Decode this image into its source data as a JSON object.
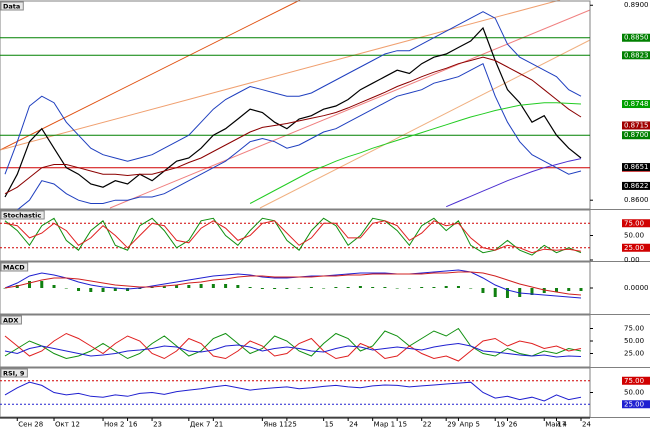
{
  "chart_data": [
    {
      "type": "line",
      "title": "Data",
      "categories": [
        null,
        "Сен 28",
        null,
        null,
        "Окт 12",
        null,
        null,
        null,
        "Ноя 2",
        null,
        "16",
        null,
        "23",
        null,
        null,
        "Дек 7",
        null,
        "21",
        null,
        null,
        null,
        "Янв 11",
        null,
        "25",
        null,
        null,
        "15",
        null,
        "24",
        null,
        "Мар 1",
        null,
        "15",
        null,
        "22",
        null,
        "29",
        "Апр 5",
        null,
        null,
        "19",
        "26",
        null,
        null,
        "Май 4",
        "17",
        null,
        "24"
      ],
      "ylim": [
        0.8588,
        0.8905
      ],
      "yticks": [
        {
          "value": 0.89,
          "label": "0.8900"
        },
        {
          "value": 0.86,
          "label": "0.8600"
        }
      ],
      "levels": [
        {
          "value": 0.885,
          "label": "0.8850",
          "color": "#008000"
        },
        {
          "value": 0.8823,
          "label": "0.8823",
          "color": "#008000"
        },
        {
          "value": 0.87,
          "label": "0.8700",
          "color": "#008000"
        },
        {
          "value": 0.865,
          "label": "0.8650",
          "color": "#d00000"
        }
      ],
      "markers": [
        {
          "value": 0.8748,
          "label": "0.8748",
          "color": "#00a000"
        },
        {
          "value": 0.8715,
          "label": "0.8715",
          "color": "#a00000"
        },
        {
          "value": 0.8651,
          "label": "0.8651",
          "color": "#000000"
        },
        {
          "value": 0.8622,
          "label": "0.8622",
          "color": "#000000"
        }
      ],
      "series": [
        {
          "color": "#000000",
          "values": [
            0.8605,
            0.864,
            0.869,
            0.871,
            0.868,
            0.865,
            0.864,
            0.8625,
            0.862,
            0.863,
            0.8625,
            0.864,
            0.863,
            0.8645,
            0.866,
            0.8665,
            0.868,
            0.87,
            0.871,
            0.8725,
            0.874,
            0.8735,
            0.872,
            0.871,
            0.8725,
            0.873,
            0.874,
            0.8745,
            0.8755,
            0.877,
            0.878,
            0.879,
            0.88,
            0.8795,
            0.881,
            0.882,
            0.8825,
            0.8835,
            0.8845,
            0.8865,
            0.8815,
            0.877,
            0.875,
            0.872,
            0.873,
            0.87,
            0.868,
            0.8665
          ]
        },
        {
          "color": "#1f3fbf",
          "values": [
            0.864,
            0.869,
            0.8745,
            0.876,
            0.875,
            0.872,
            0.87,
            0.868,
            0.867,
            0.8665,
            0.866,
            0.8665,
            0.867,
            0.868,
            0.869,
            0.87,
            0.872,
            0.874,
            0.8755,
            0.8765,
            0.8775,
            0.877,
            0.8765,
            0.876,
            0.876,
            0.8765,
            0.8775,
            0.8785,
            0.8795,
            0.8805,
            0.8815,
            0.8825,
            0.883,
            0.883,
            0.884,
            0.885,
            0.886,
            0.887,
            0.888,
            0.889,
            0.888,
            0.884,
            0.882,
            0.881,
            0.88,
            0.879,
            0.877,
            0.876
          ]
        },
        {
          "color": "#1f3fbf",
          "values": [
            0.858,
            0.8585,
            0.86,
            0.863,
            0.8625,
            0.861,
            0.86,
            0.8595,
            0.8595,
            0.86,
            0.86,
            0.8605,
            0.8605,
            0.861,
            0.862,
            0.863,
            0.864,
            0.865,
            0.866,
            0.8675,
            0.869,
            0.8695,
            0.869,
            0.868,
            0.8685,
            0.8695,
            0.8705,
            0.871,
            0.872,
            0.873,
            0.874,
            0.875,
            0.876,
            0.8765,
            0.877,
            0.878,
            0.8785,
            0.879,
            0.88,
            0.881,
            0.876,
            0.872,
            0.869,
            0.867,
            0.866,
            0.865,
            0.864,
            0.8645
          ]
        },
        {
          "color": "#8b0000",
          "values": [
            0.861,
            0.862,
            0.8635,
            0.865,
            0.8655,
            0.8655,
            0.865,
            0.8645,
            0.864,
            0.864,
            0.8638,
            0.864,
            0.864,
            0.8645,
            0.865,
            0.8658,
            0.8665,
            0.8675,
            0.8685,
            0.8695,
            0.8705,
            0.8712,
            0.8715,
            0.8718,
            0.8722,
            0.8726,
            0.873,
            0.8735,
            0.8742,
            0.875,
            0.8758,
            0.8766,
            0.8775,
            0.8782,
            0.879,
            0.8797,
            0.8803,
            0.881,
            0.8815,
            0.882,
            0.8815,
            0.8805,
            0.8795,
            0.8785,
            0.877,
            0.8755,
            0.874,
            0.8728
          ]
        },
        {
          "color": "#22cc22",
          "values": [
            null,
            null,
            null,
            null,
            null,
            null,
            null,
            null,
            null,
            null,
            null,
            null,
            null,
            null,
            null,
            null,
            null,
            null,
            null,
            null,
            0.8595,
            0.8605,
            0.8615,
            0.8625,
            0.8635,
            0.8645,
            0.8652,
            0.866,
            0.8667,
            0.8673,
            0.868,
            0.8686,
            0.8692,
            0.8698,
            0.8704,
            0.871,
            0.8716,
            0.8722,
            0.8728,
            0.8733,
            0.8738,
            0.8742,
            0.8746,
            0.8748,
            0.875,
            0.875,
            0.8749,
            0.8748
          ]
        },
        {
          "color": "#4b2fd0",
          "values": [
            null,
            null,
            null,
            null,
            null,
            null,
            null,
            null,
            null,
            null,
            null,
            null,
            null,
            null,
            null,
            null,
            null,
            null,
            null,
            null,
            null,
            null,
            null,
            null,
            null,
            null,
            null,
            null,
            null,
            null,
            null,
            null,
            null,
            null,
            null,
            null,
            0.859,
            0.8598,
            0.8606,
            0.8614,
            0.8622,
            0.863,
            0.8637,
            0.8644,
            0.865,
            0.8655,
            0.866,
            0.8664
          ]
        }
      ]
    },
    {
      "type": "line",
      "title": "Stochastic",
      "ylim": [
        0,
        100
      ],
      "yticks": [
        {
          "value": 50,
          "label": "50.00"
        },
        {
          "value": 0,
          "label": "0.00"
        }
      ],
      "levels": [
        {
          "value": 75,
          "label": "75.00",
          "color": "#d00000"
        },
        {
          "value": 25,
          "label": "25.00",
          "color": "#d00000"
        }
      ],
      "series": [
        {
          "color": "#109010",
          "values": [
            80,
            60,
            30,
            70,
            85,
            40,
            20,
            60,
            80,
            30,
            20,
            70,
            85,
            60,
            25,
            40,
            80,
            85,
            50,
            30,
            60,
            85,
            80,
            40,
            20,
            60,
            85,
            70,
            30,
            50,
            85,
            80,
            60,
            30,
            70,
            85,
            60,
            80,
            30,
            15,
            20,
            40,
            20,
            10,
            30,
            15,
            25,
            15
          ]
        },
        {
          "color": "#e02020",
          "values": [
            75,
            70,
            45,
            55,
            75,
            60,
            30,
            45,
            70,
            50,
            25,
            50,
            75,
            70,
            40,
            35,
            65,
            80,
            65,
            40,
            50,
            75,
            80,
            55,
            30,
            45,
            75,
            75,
            45,
            45,
            75,
            80,
            70,
            40,
            55,
            80,
            70,
            75,
            45,
            25,
            20,
            30,
            25,
            15,
            22,
            20,
            22,
            18
          ]
        }
      ]
    },
    {
      "type": "line",
      "title": "MACD",
      "ylim": [
        -0.0025,
        0.0025
      ],
      "yticks": [
        {
          "value": 0,
          "label": "0.0000"
        }
      ],
      "series": [
        {
          "color": "#108010",
          "style": "bar",
          "values": [
            0.0,
            0.0003,
            0.0007,
            0.0007,
            0.0003,
            0.0,
            -0.0003,
            -0.0004,
            -0.0004,
            -0.0003,
            -0.0003,
            -0.0001,
            0.0001,
            0.0002,
            0.0003,
            0.0003,
            0.0004,
            0.0004,
            0.0004,
            0.0003,
            0.0001,
            -0.0001,
            -0.0001,
            -0.0001,
            0.0,
            0.0001,
            0.0,
            0.0001,
            0.0001,
            0.0002,
            0.0001,
            0.0001,
            0.0,
            0.0,
            0.0001,
            0.0001,
            0.0002,
            0.0002,
            0.0,
            -0.0005,
            -0.0009,
            -0.001,
            -0.0009,
            -0.0007,
            -0.0005,
            -0.0004,
            -0.0003,
            -0.0003
          ]
        },
        {
          "color": "#2020d0",
          "values": [
            0.0,
            0.0005,
            0.0012,
            0.0015,
            0.0013,
            0.001,
            0.0006,
            0.0003,
            0.0001,
            0.0,
            -0.0001,
            0.0,
            0.0002,
            0.0004,
            0.0006,
            0.0008,
            0.001,
            0.0012,
            0.0013,
            0.0014,
            0.0013,
            0.0011,
            0.001,
            0.001,
            0.0011,
            0.0012,
            0.0012,
            0.0013,
            0.0014,
            0.0015,
            0.0015,
            0.0015,
            0.0014,
            0.0014,
            0.0015,
            0.0016,
            0.0017,
            0.0018,
            0.0016,
            0.001,
            0.0003,
            -0.0002,
            -0.0005,
            -0.0006,
            -0.0007,
            -0.0008,
            -0.0009,
            -0.001
          ]
        },
        {
          "color": "#d02020",
          "values": [
            0.0,
            0.0002,
            0.0005,
            0.0008,
            0.001,
            0.001,
            0.0009,
            0.0007,
            0.0005,
            0.0003,
            0.0002,
            0.0001,
            0.0001,
            0.0002,
            0.0003,
            0.0005,
            0.0006,
            0.0008,
            0.0009,
            0.0011,
            0.0012,
            0.0012,
            0.0011,
            0.0011,
            0.0011,
            0.0011,
            0.0012,
            0.0012,
            0.0013,
            0.0013,
            0.0014,
            0.0014,
            0.0014,
            0.0014,
            0.0014,
            0.0015,
            0.0015,
            0.0016,
            0.0016,
            0.0015,
            0.0012,
            0.0008,
            0.0004,
            0.0001,
            -0.0002,
            -0.0004,
            -0.0006,
            -0.0007
          ]
        }
      ]
    },
    {
      "type": "line",
      "title": "ADX",
      "ylim": [
        0,
        100
      ],
      "yticks": [
        {
          "value": 75,
          "label": "75.00"
        },
        {
          "value": 50,
          "label": "50.00"
        },
        {
          "value": 25,
          "label": "25.00"
        }
      ],
      "series": [
        {
          "color": "#109010",
          "values": [
            20,
            35,
            50,
            40,
            25,
            15,
            20,
            30,
            45,
            30,
            15,
            25,
            45,
            60,
            40,
            20,
            30,
            55,
            65,
            45,
            25,
            35,
            60,
            50,
            30,
            20,
            45,
            65,
            55,
            30,
            40,
            70,
            60,
            40,
            55,
            70,
            60,
            75,
            40,
            25,
            20,
            35,
            25,
            20,
            30,
            25,
            35,
            30
          ]
        },
        {
          "color": "#e02020",
          "values": [
            60,
            40,
            20,
            30,
            50,
            65,
            55,
            40,
            25,
            45,
            60,
            50,
            25,
            15,
            30,
            55,
            45,
            20,
            15,
            30,
            50,
            40,
            20,
            25,
            45,
            55,
            30,
            15,
            20,
            45,
            35,
            15,
            20,
            40,
            25,
            15,
            20,
            10,
            30,
            50,
            55,
            40,
            50,
            45,
            35,
            40,
            30,
            35
          ]
        },
        {
          "color": "#2020d0",
          "values": [
            30,
            25,
            35,
            40,
            35,
            30,
            25,
            20,
            22,
            25,
            30,
            32,
            35,
            40,
            38,
            30,
            28,
            32,
            40,
            42,
            38,
            30,
            35,
            38,
            35,
            30,
            28,
            35,
            40,
            38,
            32,
            35,
            38,
            35,
            32,
            38,
            42,
            45,
            40,
            30,
            28,
            25,
            22,
            20,
            22,
            18,
            20,
            19
          ]
        }
      ]
    },
    {
      "type": "line",
      "title": "RSI, 9",
      "ylim": [
        0,
        100
      ],
      "yticks": [
        {
          "value": 50,
          "label": "50.00"
        }
      ],
      "levels": [
        {
          "value": 75,
          "label": "75.00",
          "color": "#d00000"
        },
        {
          "value": 25,
          "label": "25.00",
          "color": "#2020d0"
        }
      ],
      "series": [
        {
          "color": "#2020d0",
          "values": [
            45,
            60,
            72,
            65,
            50,
            45,
            48,
            42,
            40,
            45,
            42,
            48,
            50,
            46,
            52,
            55,
            58,
            62,
            65,
            60,
            55,
            58,
            60,
            62,
            58,
            60,
            63,
            65,
            62,
            60,
            64,
            66,
            65,
            62,
            64,
            66,
            68,
            70,
            72,
            50,
            38,
            42,
            35,
            40,
            32,
            45,
            35,
            40
          ]
        }
      ]
    }
  ]
}
